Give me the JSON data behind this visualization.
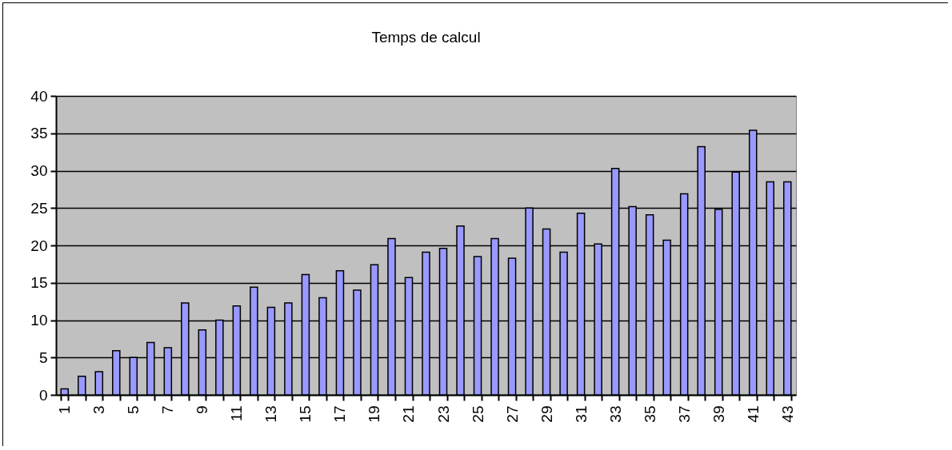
{
  "chart_data": {
    "type": "bar",
    "title": "Temps de calcul",
    "categories": [
      "1",
      null,
      "3",
      null,
      "5",
      null,
      "7",
      null,
      "9",
      null,
      "11",
      null,
      "13",
      null,
      "15",
      null,
      "17",
      null,
      "19",
      null,
      "21",
      null,
      "23",
      null,
      "25",
      null,
      "27",
      null,
      "29",
      null,
      "31",
      null,
      "33",
      null,
      "35",
      null,
      "37",
      null,
      "39",
      null,
      "41",
      null,
      "43"
    ],
    "values": [
      0.8,
      2.5,
      3.1,
      5.9,
      5,
      7,
      6.3,
      12.3,
      8.7,
      10,
      11.9,
      14.4,
      11.7,
      12.3,
      16.1,
      13,
      16.6,
      14,
      17.4,
      20.9,
      15.7,
      19.1,
      19.6,
      22.6,
      18.5,
      20.9,
      18.3,
      25,
      22.2,
      19.1,
      24.3,
      20.2,
      30.3,
      25.2,
      24.1,
      20.7,
      26.9,
      33.2,
      24.8,
      29.8,
      35.4,
      28.5,
      28.5
    ],
    "color": "#9999ff",
    "ylim": [
      0,
      40
    ],
    "yticks": [
      0,
      5,
      10,
      15,
      20,
      25,
      30,
      35,
      40
    ],
    "grid": "y"
  }
}
